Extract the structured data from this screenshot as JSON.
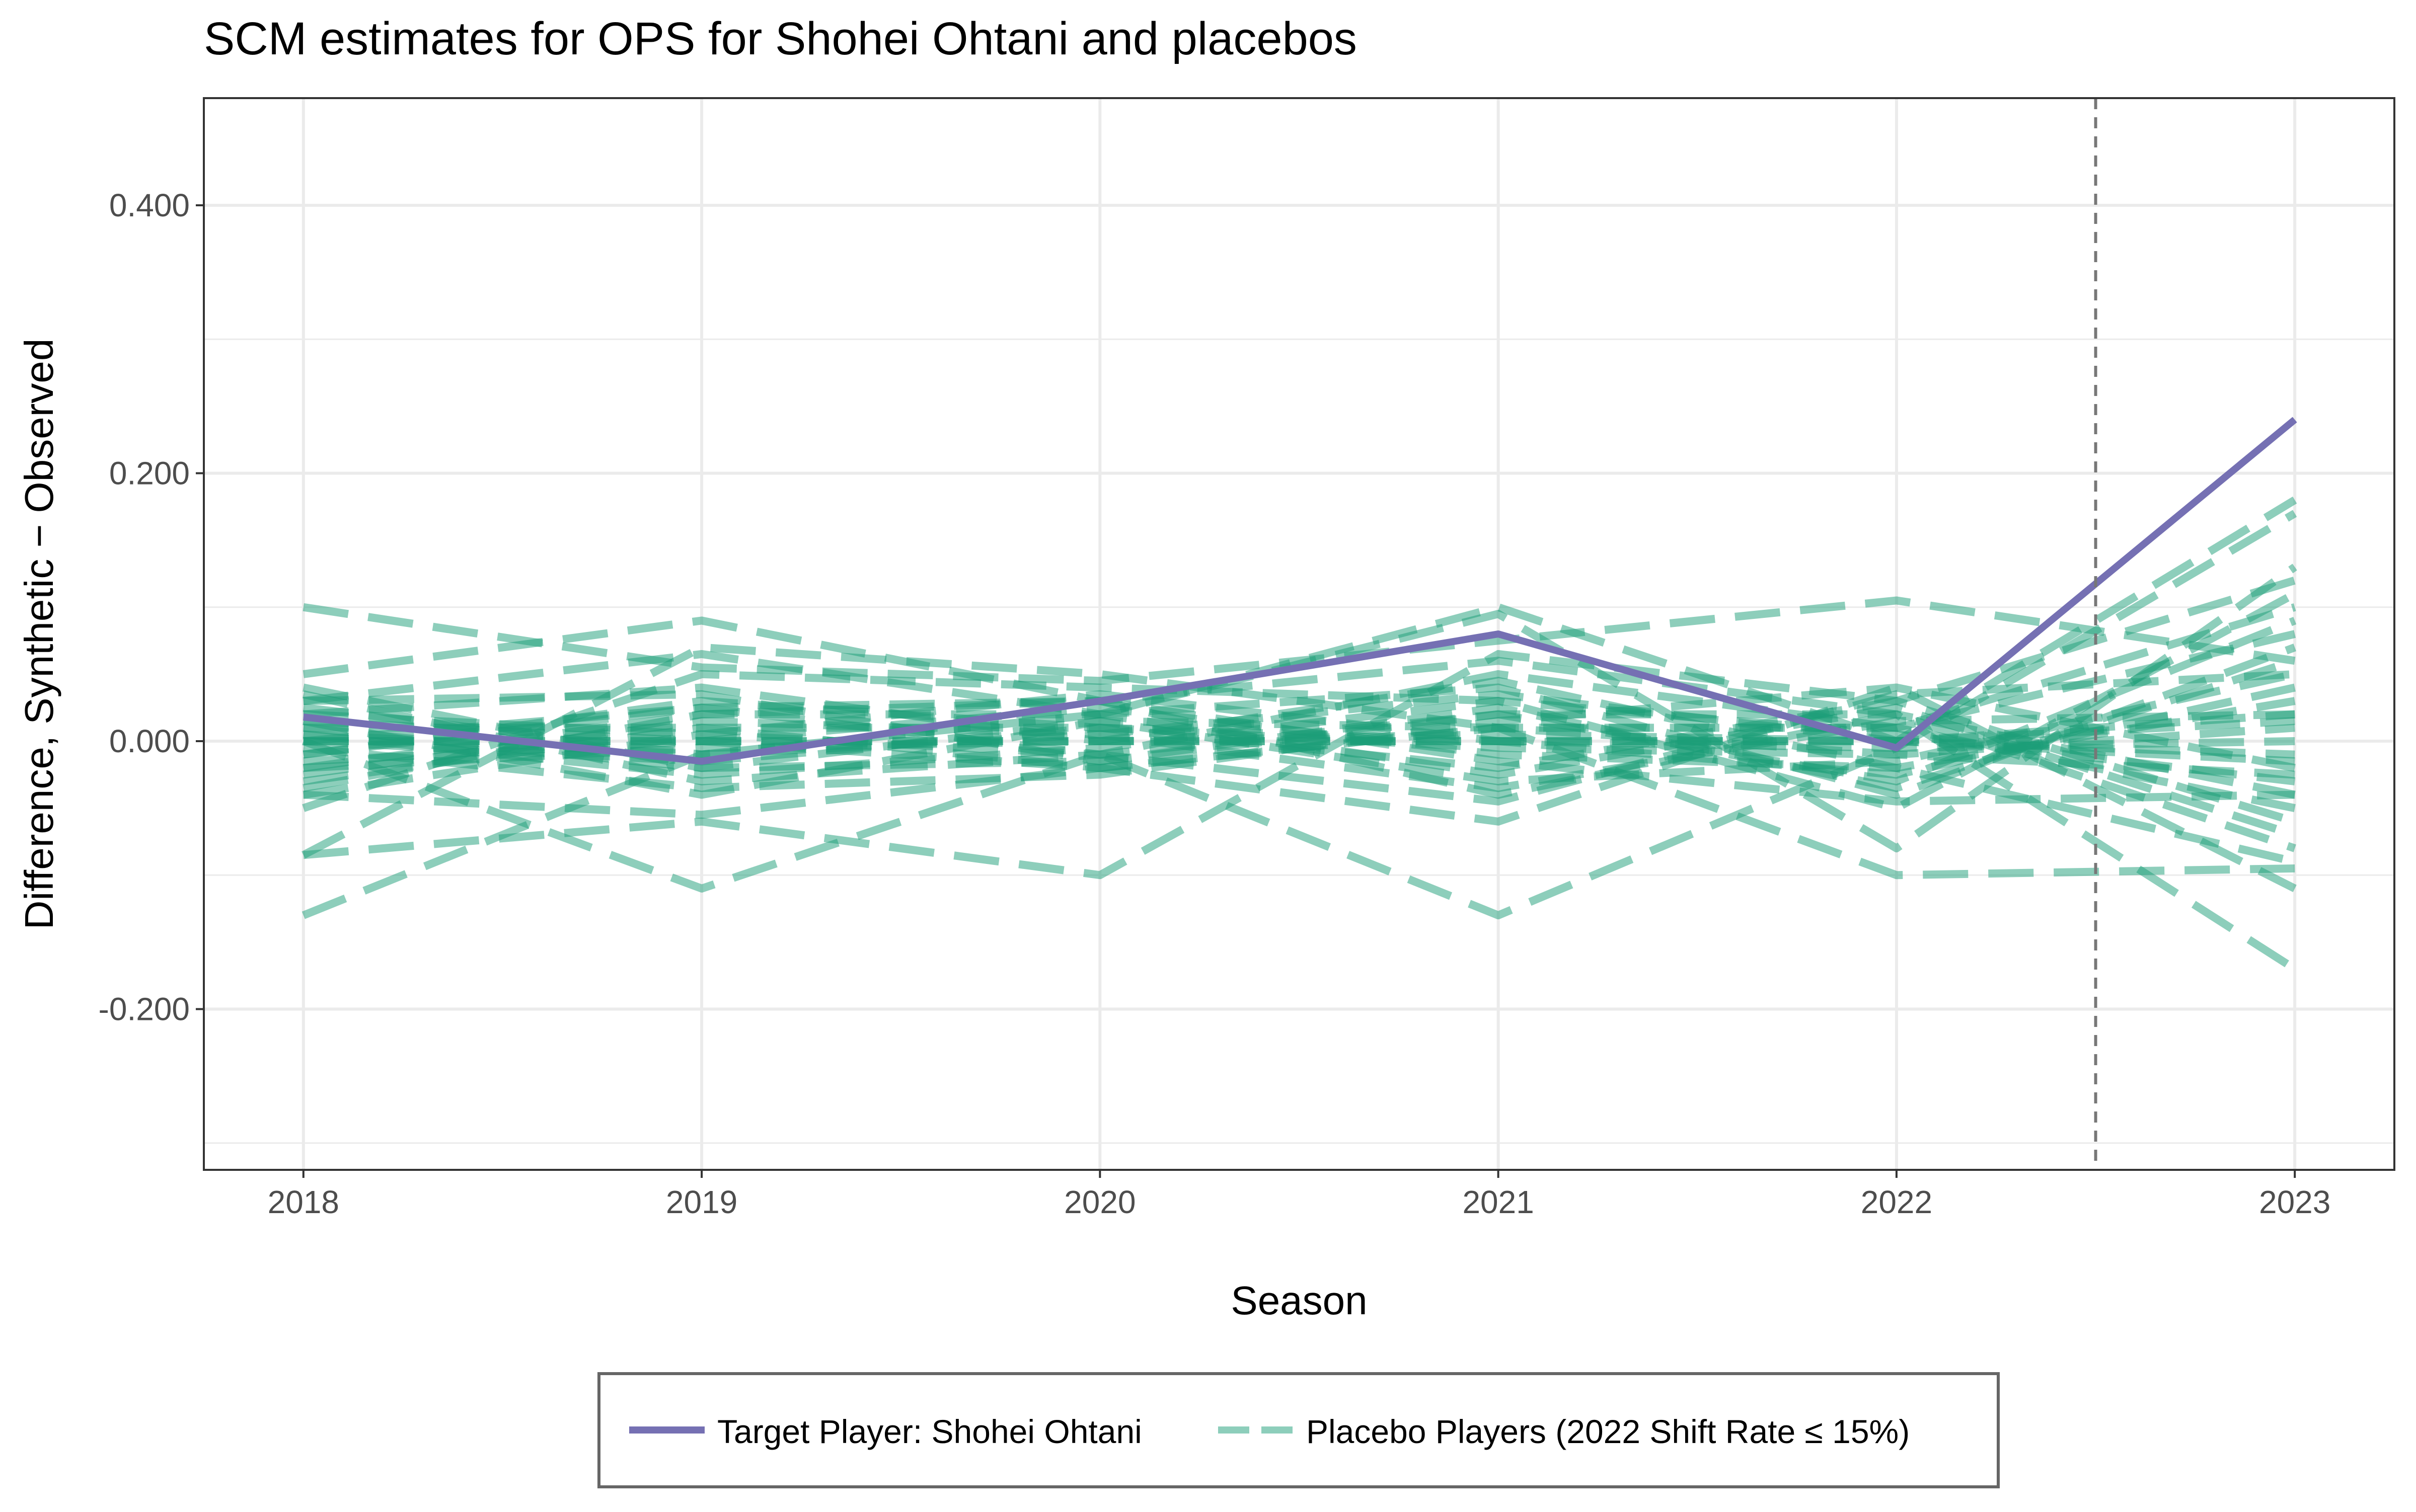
{
  "chart_data": {
    "type": "line",
    "title": "SCM estimates for OPS for Shohei Ohtani and placebos",
    "xlabel": "Season",
    "ylabel": "Difference, Synthetic − Observed",
    "x": [
      2018,
      2019,
      2020,
      2021,
      2022,
      2023
    ],
    "xlim": [
      2017.75,
      2023.25
    ],
    "ylim": [
      -0.32,
      0.48
    ],
    "y_ticks": [
      -0.2,
      0.0,
      0.2,
      0.4
    ],
    "y_tick_labels": [
      "-0.200",
      "0.000",
      "0.200",
      "0.400"
    ],
    "x_ticks": [
      2018,
      2019,
      2020,
      2021,
      2022,
      2023
    ],
    "x_tick_labels": [
      "2018",
      "2019",
      "2020",
      "2021",
      "2022",
      "2023"
    ],
    "grid": true,
    "legend_position": "bottom",
    "reference_line": {
      "x": 2022.5,
      "style": "dashed",
      "color": "#777777"
    },
    "colors": {
      "target": "#7570b3",
      "placebo": "#1b9e77",
      "placebo_alpha": 0.5
    },
    "series": [
      {
        "name": "Target Player: Shohei Ohtani",
        "role": "target",
        "values": [
          0.018,
          -0.015,
          0.03,
          0.08,
          -0.005,
          0.24
        ]
      },
      {
        "role": "placebo",
        "values": [
          0.1,
          0.055,
          0.045,
          0.075,
          0.105,
          0.06
        ]
      },
      {
        "role": "placebo",
        "values": [
          -0.13,
          -0.01,
          0.02,
          0.1,
          0.0,
          0.18
        ]
      },
      {
        "role": "placebo",
        "values": [
          0.0,
          -0.11,
          -0.01,
          -0.13,
          -0.005,
          0.17
        ]
      },
      {
        "role": "placebo",
        "values": [
          -0.085,
          0.07,
          0.05,
          0.01,
          -0.1,
          -0.095
        ]
      },
      {
        "role": "placebo",
        "values": [
          0.05,
          0.09,
          0.03,
          0.06,
          0.02,
          -0.17
        ]
      },
      {
        "role": "placebo",
        "values": [
          0.03,
          0.065,
          0.02,
          0.095,
          -0.08,
          0.13
        ]
      },
      {
        "role": "placebo",
        "values": [
          -0.04,
          -0.055,
          -0.02,
          -0.06,
          0.04,
          -0.11
        ]
      },
      {
        "role": "placebo",
        "values": [
          -0.085,
          -0.06,
          -0.1,
          0.065,
          0.03,
          0.12
        ]
      },
      {
        "role": "placebo",
        "values": [
          0.02,
          0.04,
          0.0,
          0.045,
          -0.02,
          -0.09
        ]
      },
      {
        "role": "placebo",
        "values": [
          -0.05,
          0.05,
          0.04,
          0.03,
          -0.05,
          0.11
        ]
      },
      {
        "role": "placebo",
        "values": [
          0.035,
          -0.03,
          -0.01,
          0.05,
          0.01,
          0.1
        ]
      },
      {
        "role": "placebo",
        "values": [
          -0.02,
          0.02,
          0.03,
          -0.04,
          0.02,
          -0.08
        ]
      },
      {
        "role": "placebo",
        "values": [
          0.01,
          -0.02,
          -0.015,
          0.02,
          -0.03,
          0.09
        ]
      },
      {
        "role": "placebo",
        "values": [
          -0.01,
          0.03,
          0.01,
          -0.02,
          0.03,
          -0.06
        ]
      },
      {
        "role": "placebo",
        "values": [
          0.025,
          -0.01,
          0.02,
          0.04,
          -0.04,
          0.07
        ]
      },
      {
        "role": "placebo",
        "values": [
          -0.03,
          0.01,
          -0.02,
          0.01,
          0.01,
          -0.05
        ]
      },
      {
        "role": "placebo",
        "values": [
          0.015,
          -0.04,
          0.015,
          -0.03,
          -0.015,
          0.05
        ]
      },
      {
        "role": "placebo",
        "values": [
          0.0,
          0.025,
          -0.01,
          0.02,
          0.02,
          -0.04
        ]
      },
      {
        "role": "placebo",
        "values": [
          -0.015,
          0.0,
          0.025,
          -0.01,
          -0.02,
          0.03
        ]
      },
      {
        "role": "placebo",
        "values": [
          0.005,
          -0.025,
          -0.005,
          0.03,
          0.005,
          -0.03
        ]
      },
      {
        "role": "placebo",
        "values": [
          -0.025,
          0.015,
          0.005,
          -0.035,
          0.015,
          0.02
        ]
      },
      {
        "role": "placebo",
        "values": [
          0.02,
          0.005,
          0.035,
          0.0,
          -0.025,
          0.04
        ]
      },
      {
        "role": "placebo",
        "values": [
          -0.005,
          -0.035,
          -0.025,
          0.015,
          0.04,
          -0.02
        ]
      },
      {
        "role": "placebo",
        "values": [
          0.01,
          0.01,
          0.01,
          -0.005,
          -0.01,
          0.01
        ]
      },
      {
        "role": "placebo",
        "values": [
          -0.02,
          -0.005,
          0.0,
          0.005,
          0.0,
          -0.01
        ]
      },
      {
        "role": "placebo",
        "values": [
          0.03,
          0.035,
          -0.015,
          0.025,
          -0.035,
          0.06
        ]
      },
      {
        "role": "placebo",
        "values": [
          -0.035,
          0.02,
          0.02,
          -0.025,
          0.025,
          -0.07
        ]
      },
      {
        "role": "placebo",
        "values": [
          0.0,
          -0.015,
          0.01,
          0.0,
          -0.005,
          0.0
        ]
      },
      {
        "role": "placebo",
        "values": [
          0.015,
          0.0,
          -0.02,
          0.01,
          0.01,
          0.08
        ]
      },
      {
        "role": "placebo",
        "values": [
          -0.01,
          0.025,
          0.03,
          -0.015,
          -0.045,
          -0.04
        ]
      },
      {
        "role": "placebo",
        "values": [
          0.005,
          -0.01,
          0.005,
          0.035,
          0.0,
          0.015
        ]
      },
      {
        "role": "placebo",
        "values": [
          -0.04,
          0.005,
          -0.01,
          -0.045,
          0.035,
          0.05
        ]
      },
      {
        "role": "placebo",
        "values": [
          0.04,
          -0.02,
          0.015,
          0.01,
          -0.01,
          -0.025
        ]
      },
      {
        "role": "placebo",
        "values": [
          0.0,
          0.0,
          0.0,
          0.0,
          0.0,
          0.02
        ]
      },
      {
        "name": "Placebo Players (2022 Shift Rate ≤ 15%)",
        "role": "placebo",
        "values": [
          0.0,
          0.0,
          0.0,
          0.0,
          0.0,
          -0.015
        ]
      }
    ]
  },
  "legend": {
    "items": [
      {
        "label": "Target Player: Shohei Ohtani",
        "style": "solid",
        "color": "#7570b3"
      },
      {
        "label": "Placebo Players (2022 Shift Rate ≤ 15%)",
        "style": "dashed",
        "color": "#1b9e77"
      }
    ]
  }
}
